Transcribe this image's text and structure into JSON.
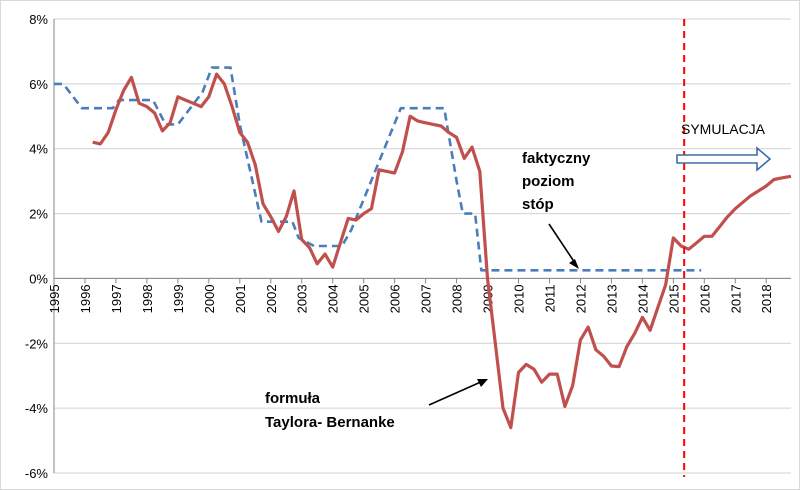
{
  "chart_data": {
    "type": "line",
    "title": "",
    "xlabel": "",
    "ylabel": "",
    "xlim": [
      1995,
      2018.8
    ],
    "ylim": [
      -6,
      8
    ],
    "x_ticks": [
      "1995",
      "1996",
      "1997",
      "1998",
      "1999",
      "2000",
      "2001",
      "2002",
      "2003",
      "2004",
      "2005",
      "2006",
      "2007",
      "2008",
      "2009",
      "2010",
      "2011",
      "2012",
      "2013",
      "2014",
      "2015",
      "2016",
      "2017",
      "2018"
    ],
    "y_ticks": [
      "-6%",
      "-4%",
      "-2%",
      "0%",
      "2%",
      "4%",
      "6%",
      "8%"
    ],
    "grid": "horizontal",
    "series": [
      {
        "name": "",
        "style": "dashed",
        "color": "#4a7ebb",
        "points": [
          [
            1995.0,
            6.0
          ],
          [
            1995.3,
            6.0
          ],
          [
            1995.9,
            5.25
          ],
          [
            1996.9,
            5.25
          ],
          [
            1997.1,
            5.5
          ],
          [
            1998.2,
            5.5
          ],
          [
            1998.6,
            4.75
          ],
          [
            1999.0,
            4.75
          ],
          [
            1999.8,
            5.75
          ],
          [
            2000.1,
            6.5
          ],
          [
            2000.7,
            6.5
          ],
          [
            2001.0,
            4.75
          ],
          [
            2001.7,
            1.75
          ],
          [
            2002.7,
            1.75
          ],
          [
            2002.9,
            1.25
          ],
          [
            2003.4,
            1.0
          ],
          [
            2004.3,
            1.0
          ],
          [
            2004.6,
            1.5
          ],
          [
            2006.2,
            5.25
          ],
          [
            2007.6,
            5.25
          ],
          [
            2008.0,
            3.0
          ],
          [
            2008.2,
            2.0
          ],
          [
            2008.6,
            2.0
          ],
          [
            2008.8,
            0.25
          ],
          [
            2015.9,
            0.25
          ]
        ]
      },
      {
        "name": "",
        "style": "solid",
        "color": "#c0504d",
        "points": [
          [
            1996.25,
            4.2
          ],
          [
            1996.5,
            4.15
          ],
          [
            1996.75,
            4.5
          ],
          [
            1997.0,
            5.2
          ],
          [
            1997.25,
            5.8
          ],
          [
            1997.5,
            6.2
          ],
          [
            1997.75,
            5.4
          ],
          [
            1998.0,
            5.3
          ],
          [
            1998.25,
            5.1
          ],
          [
            1998.5,
            4.55
          ],
          [
            1998.75,
            4.8
          ],
          [
            1999.0,
            5.6
          ],
          [
            1999.25,
            5.5
          ],
          [
            1999.5,
            5.4
          ],
          [
            1999.75,
            5.3
          ],
          [
            2000.0,
            5.6
          ],
          [
            2000.25,
            6.3
          ],
          [
            2000.5,
            6.0
          ],
          [
            2000.75,
            5.3
          ],
          [
            2001.0,
            4.5
          ],
          [
            2001.25,
            4.2
          ],
          [
            2001.5,
            3.5
          ],
          [
            2001.75,
            2.3
          ],
          [
            2002.0,
            1.9
          ],
          [
            2002.25,
            1.45
          ],
          [
            2002.5,
            1.9
          ],
          [
            2002.75,
            2.7
          ],
          [
            2003.0,
            1.2
          ],
          [
            2003.25,
            0.95
          ],
          [
            2003.5,
            0.45
          ],
          [
            2003.75,
            0.75
          ],
          [
            2004.0,
            0.35
          ],
          [
            2004.25,
            1.1
          ],
          [
            2004.5,
            1.85
          ],
          [
            2004.75,
            1.8
          ],
          [
            2005.0,
            2.0
          ],
          [
            2005.25,
            2.15
          ],
          [
            2005.5,
            3.35
          ],
          [
            2005.75,
            3.3
          ],
          [
            2006.0,
            3.25
          ],
          [
            2006.25,
            3.9
          ],
          [
            2006.5,
            5.0
          ],
          [
            2006.75,
            4.85
          ],
          [
            2007.0,
            4.8
          ],
          [
            2007.25,
            4.75
          ],
          [
            2007.5,
            4.7
          ],
          [
            2007.75,
            4.5
          ],
          [
            2008.0,
            4.35
          ],
          [
            2008.25,
            3.7
          ],
          [
            2008.5,
            4.05
          ],
          [
            2008.75,
            3.3
          ],
          [
            2009.0,
            0.0
          ],
          [
            2009.25,
            -2.0
          ],
          [
            2009.5,
            -4.0
          ],
          [
            2009.75,
            -4.6
          ],
          [
            2010.0,
            -2.9
          ],
          [
            2010.25,
            -2.65
          ],
          [
            2010.5,
            -2.8
          ],
          [
            2010.75,
            -3.2
          ],
          [
            2011.0,
            -2.95
          ],
          [
            2011.25,
            -2.95
          ],
          [
            2011.5,
            -3.95
          ],
          [
            2011.75,
            -3.3
          ],
          [
            2012.0,
            -1.9
          ],
          [
            2012.25,
            -1.5
          ],
          [
            2012.5,
            -2.2
          ],
          [
            2012.75,
            -2.4
          ],
          [
            2013.0,
            -2.7
          ],
          [
            2013.25,
            -2.72
          ],
          [
            2013.5,
            -2.1
          ],
          [
            2013.75,
            -1.7
          ],
          [
            2014.0,
            -1.2
          ],
          [
            2014.25,
            -1.6
          ],
          [
            2014.5,
            -0.9
          ],
          [
            2014.75,
            -0.2
          ],
          [
            2015.0,
            1.25
          ],
          [
            2015.25,
            1.0
          ],
          [
            2015.5,
            0.9
          ],
          [
            2015.75,
            1.1
          ],
          [
            2016.0,
            1.3
          ],
          [
            2016.25,
            1.3
          ],
          [
            2016.5,
            1.6
          ],
          [
            2016.75,
            1.9
          ],
          [
            2017.0,
            2.15
          ],
          [
            2017.25,
            2.35
          ],
          [
            2017.5,
            2.55
          ],
          [
            2017.75,
            2.7
          ],
          [
            2018.0,
            2.85
          ],
          [
            2018.25,
            3.05
          ],
          [
            2018.5,
            3.1
          ],
          [
            2018.8,
            3.15
          ]
        ]
      }
    ],
    "vline": {
      "x": 2015.35,
      "color": "#ff0000",
      "style": "dashed"
    },
    "annotations": {
      "actual_rate": [
        "faktyczny",
        "poziom",
        "stóp"
      ],
      "formula": [
        "formuła",
        "Taylora- Bernanke"
      ],
      "simulation": "SYMULACJA"
    }
  }
}
